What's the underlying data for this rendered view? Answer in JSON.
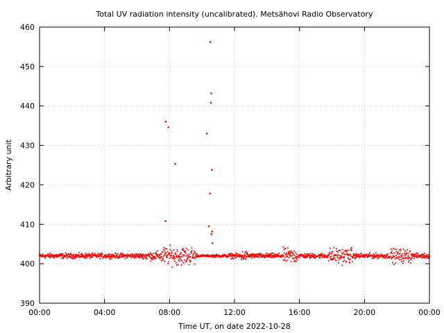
{
  "chart_data": {
    "type": "scatter",
    "title": "Total UV radiation intensity (uncalibrated). Metsähovi Radio Observatory",
    "xlabel": "Time UT, on date 2022-10-28",
    "ylabel": "Arbitrary unit",
    "xlim": [
      0,
      24
    ],
    "ylim": [
      390,
      460
    ],
    "x_ticks": [
      0,
      4,
      8,
      12,
      16,
      20,
      24
    ],
    "x_tick_labels": [
      "00:00",
      "04:00",
      "08:00",
      "12:00",
      "16:00",
      "20:00",
      "00:00"
    ],
    "y_ticks": [
      390,
      400,
      410,
      420,
      430,
      440,
      450,
      460
    ],
    "y_tick_labels": [
      "390",
      "400",
      "410",
      "420",
      "430",
      "440",
      "450",
      "460"
    ],
    "grid": true,
    "series": [
      {
        "color": "#ff0000",
        "baseline": 402,
        "points_hours": [
          7.75,
          7.77,
          7.93,
          8.35,
          10.3,
          10.42,
          10.5,
          10.52,
          10.55,
          10.57,
          10.6,
          10.62,
          10.58,
          10.65
        ],
        "points_values": [
          410.8,
          436,
          434.6,
          425.3,
          433,
          409.5,
          417.8,
          456.2,
          440.8,
          443.2,
          423.8,
          408.2,
          407.5,
          405.2
        ]
      }
    ]
  }
}
